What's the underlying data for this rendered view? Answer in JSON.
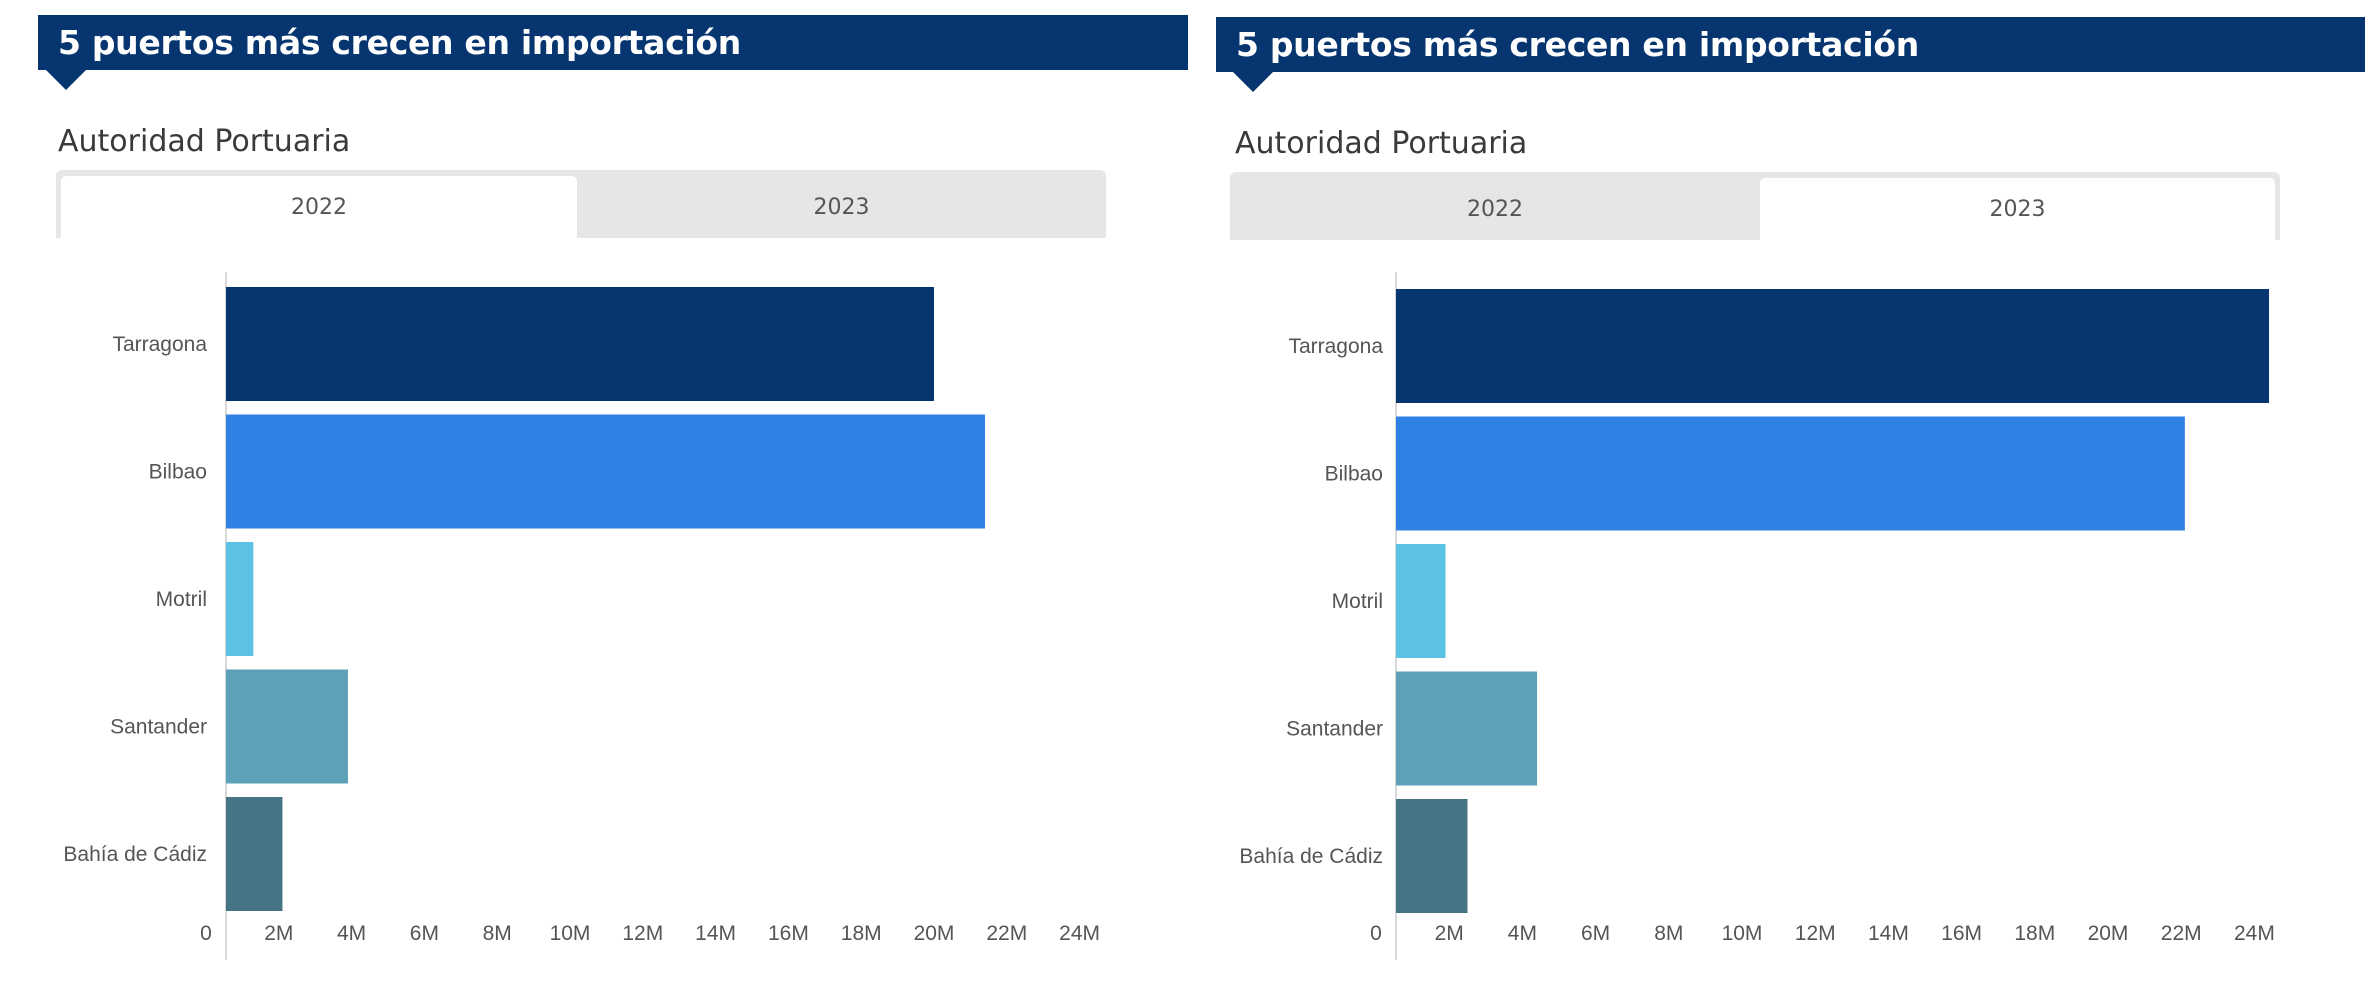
{
  "panels": [
    {
      "title": "5 puertos más crecen en importación",
      "subtitle": "Autoridad Portuaria",
      "tabs": [
        {
          "label": "2022",
          "active": true
        },
        {
          "label": "2023",
          "active": false
        }
      ]
    },
    {
      "title": "5 puertos más crecen en importación",
      "subtitle": "Autoridad Portuaria",
      "tabs": [
        {
          "label": "2022",
          "active": false
        },
        {
          "label": "2023",
          "active": true
        }
      ]
    }
  ],
  "colors": {
    "header": "#07356f",
    "tab_inactive": "#e6e6e6",
    "tab_active": "#ffffff",
    "bars": [
      "#07356f",
      "#2f81e3",
      "#5bc2e5",
      "#5ca1b8",
      "#447485"
    ],
    "axis_line": "#d9d9d9",
    "label": "#555555"
  },
  "chart_data": [
    {
      "type": "bar",
      "orientation": "horizontal",
      "title": "5 puertos más crecen en importación",
      "subtitle": "Autoridad Portuaria — 2022",
      "categories": [
        "Tarragona",
        "Bilbao",
        "Motril",
        "Santander",
        "Bahía de Cádiz"
      ],
      "values": [
        20000000,
        21400000,
        1300000,
        3900000,
        2100000
      ],
      "xlabel": "",
      "ylabel": "",
      "xlim": [
        0,
        24000000
      ],
      "xticks": [
        0,
        2000000,
        4000000,
        6000000,
        8000000,
        10000000,
        12000000,
        14000000,
        16000000,
        18000000,
        20000000,
        22000000,
        24000000
      ],
      "xtick_labels": [
        "0",
        "2M",
        "4M",
        "6M",
        "8M",
        "10M",
        "12M",
        "14M",
        "16M",
        "18M",
        "20M",
        "22M",
        "24M"
      ],
      "grid": false,
      "legend": "none"
    },
    {
      "type": "bar",
      "orientation": "horizontal",
      "title": "5 puertos más crecen en importación",
      "subtitle": "Autoridad Portuaria — 2023",
      "categories": [
        "Tarragona",
        "Bilbao",
        "Motril",
        "Santander",
        "Bahía de Cádiz"
      ],
      "values": [
        24400000,
        22100000,
        1900000,
        4400000,
        2500000
      ],
      "xlabel": "",
      "ylabel": "",
      "xlim": [
        0,
        24000000
      ],
      "xticks": [
        0,
        2000000,
        4000000,
        6000000,
        8000000,
        10000000,
        12000000,
        14000000,
        16000000,
        18000000,
        20000000,
        22000000,
        24000000
      ],
      "xtick_labels": [
        "0",
        "2M",
        "4M",
        "6M",
        "8M",
        "10M",
        "12M",
        "14M",
        "16M",
        "18M",
        "20M",
        "22M",
        "24M"
      ],
      "grid": false,
      "legend": "none"
    }
  ]
}
